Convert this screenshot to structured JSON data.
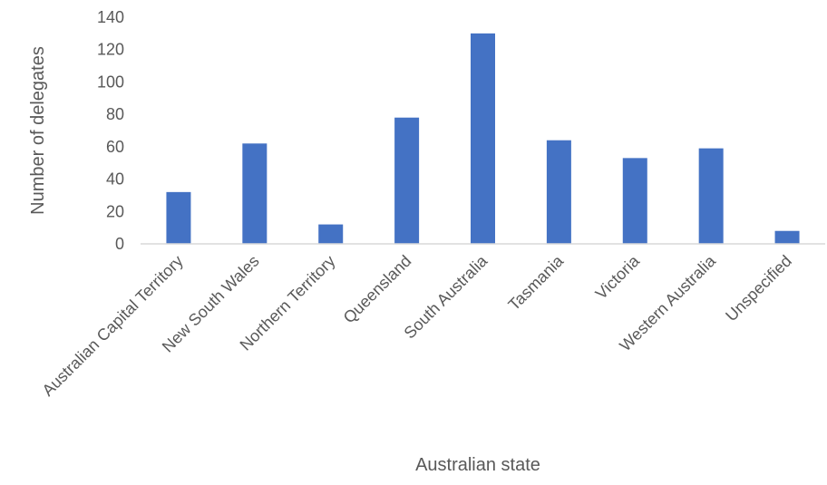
{
  "chart_data": {
    "type": "bar",
    "title": "",
    "xlabel": "Australian state",
    "ylabel": "Number of delegates",
    "categories": [
      "Australian Capital Territory",
      "New South Wales",
      "Northern Territory",
      "Queensland",
      "South Australia",
      "Tasmania",
      "Victoria",
      "Western Australia",
      "Unspecified"
    ],
    "values": [
      32,
      62,
      12,
      78,
      130,
      64,
      53,
      59,
      8
    ],
    "ylim": [
      0,
      140
    ],
    "yticks": [
      0,
      20,
      40,
      60,
      80,
      100,
      120,
      140
    ],
    "grid": false,
    "legend": "none",
    "bar_color": "#4472C4",
    "axis_color": "#D9D9D9",
    "text_color": "#595959"
  }
}
